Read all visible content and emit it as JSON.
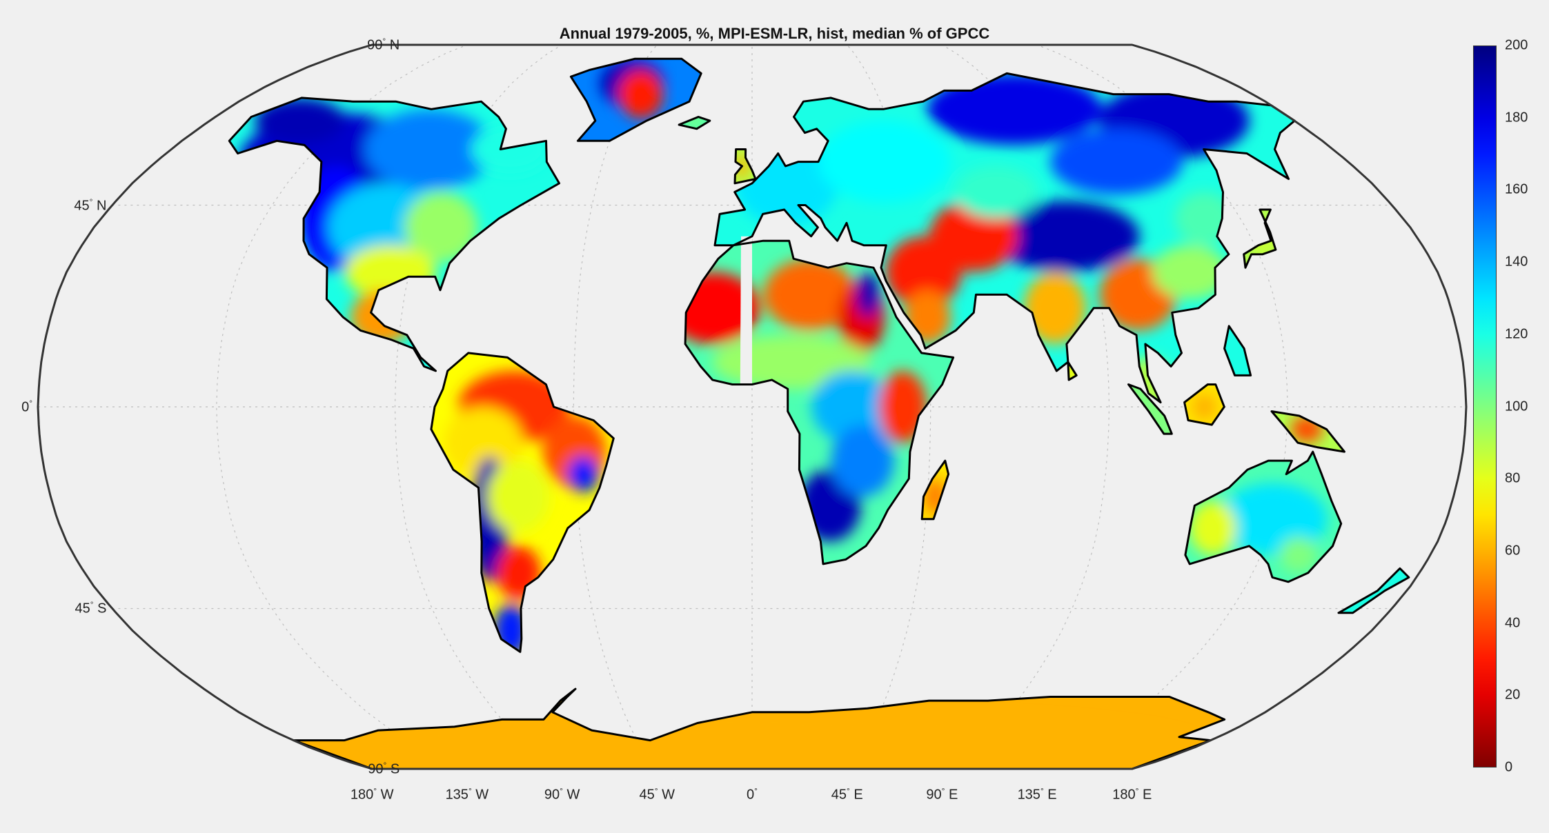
{
  "title": "Annual 1979-2005, %, MPI-ESM-LR, hist, median % of GPCC",
  "latitude_labels": [
    {
      "deg": "90",
      "hemi": "N",
      "lat": 90
    },
    {
      "deg": "45",
      "hemi": "N",
      "lat": 45
    },
    {
      "deg": "0",
      "hemi": "",
      "lat": 0
    },
    {
      "deg": "45",
      "hemi": "S",
      "lat": -45
    },
    {
      "deg": "90",
      "hemi": "S",
      "lat": -90
    }
  ],
  "longitude_labels": [
    {
      "deg": "180",
      "hemi": "W",
      "lon": -180
    },
    {
      "deg": "135",
      "hemi": "W",
      "lon": -135
    },
    {
      "deg": "90",
      "hemi": "W",
      "lon": -90
    },
    {
      "deg": "45",
      "hemi": "W",
      "lon": -45
    },
    {
      "deg": "0",
      "hemi": "",
      "lon": 0
    },
    {
      "deg": "45",
      "hemi": "E",
      "lon": 45
    },
    {
      "deg": "90",
      "hemi": "E",
      "lon": 90
    },
    {
      "deg": "135",
      "hemi": "E",
      "lon": 135
    },
    {
      "deg": "180",
      "hemi": "E",
      "lon": 180
    }
  ],
  "colorbar": {
    "min": 0,
    "max": 200,
    "ticks": [
      "200",
      "180",
      "160",
      "140",
      "120",
      "100",
      "80",
      "60",
      "40",
      "20",
      "0"
    ],
    "colormap": "jet"
  },
  "projection": "robinson",
  "grid": "dotted",
  "colors": {
    "background": "#f0f0f0",
    "coastline": "#000000",
    "grid": "#bdbdbd"
  }
}
